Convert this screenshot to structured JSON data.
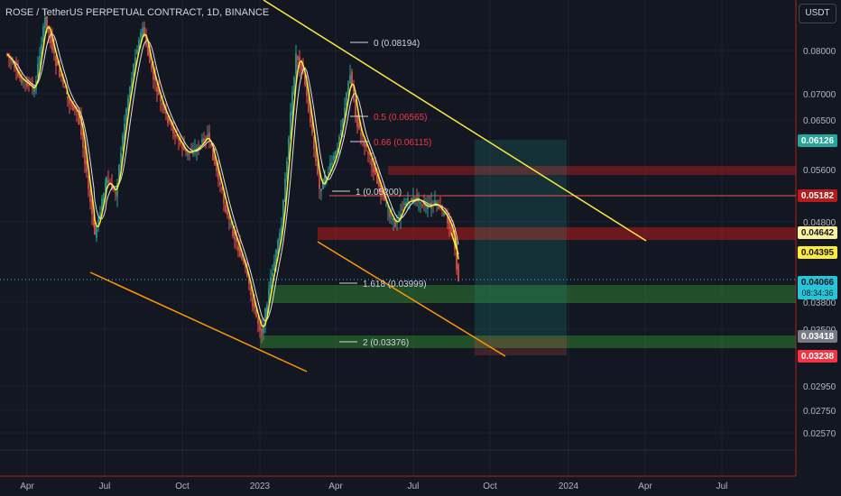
{
  "title": "ROSE / TetherUS PERPETUAL CONTRACT, 1D, BINANCE",
  "currency": "USDT",
  "chart_data": {
    "type": "candlestick",
    "symbol": "ROSE / TetherUS PERPETUAL CONTRACT",
    "interval": "1D",
    "exchange": "BINANCE",
    "x_ticks": [
      "Apr",
      "Jul",
      "Oct",
      "2023",
      "Apr",
      "Jul",
      "Oct",
      "2024",
      "Apr",
      "Jul"
    ],
    "y_ticks": [
      "0.08000",
      "0.07000",
      "0.06500",
      "0.05600",
      "0.04800",
      "0.03800",
      "0.03500",
      "0.02950",
      "0.02750",
      "0.02570"
    ],
    "price_labels": [
      {
        "value": "0.06126",
        "color": "#26a69a",
        "text_color": "#ffffff"
      },
      {
        "value": "0.05182",
        "color": "#b71c1c",
        "text_color": "#ffffff"
      },
      {
        "value": "0.04642",
        "color": "#fff59d",
        "text_color": "#131722"
      },
      {
        "value": "0.04395",
        "color": "#ffeb3b",
        "text_color": "#131722"
      },
      {
        "value": "0.04066",
        "sub": "08:34:36",
        "color": "#26c6da",
        "text_color": "#131722"
      },
      {
        "value": "0.03418",
        "color": "#787b86",
        "text_color": "#ffffff"
      },
      {
        "value": "0.03238",
        "color": "#f23645",
        "text_color": "#ffffff"
      }
    ],
    "fib_levels": [
      {
        "label": "0 (0.08194)",
        "color": "#d1d4dc"
      },
      {
        "label": "0.5 (0.06565)",
        "color": "#f23645"
      },
      {
        "label": "0.66 (0.06115)",
        "color": "#f23645"
      },
      {
        "label": "1 (0.05200)",
        "color": "#d1d4dc"
      },
      {
        "label": "1.618 (0.03999)",
        "color": "#d1d4dc"
      },
      {
        "label": "2 (0.03376)",
        "color": "#d1d4dc"
      }
    ],
    "price_close": 0.04066,
    "countdown": "08:34:36",
    "colors": {
      "up": "#26a69a",
      "down": "#ef5350",
      "ma_fast": "#ffeb3b",
      "ma_slow": "#e0e0e0",
      "trend": "#ffeb3b",
      "trend2": "#ff9800",
      "resistance": "#b71c1c",
      "support": "#2e7d32",
      "target": "#26a69a"
    }
  }
}
